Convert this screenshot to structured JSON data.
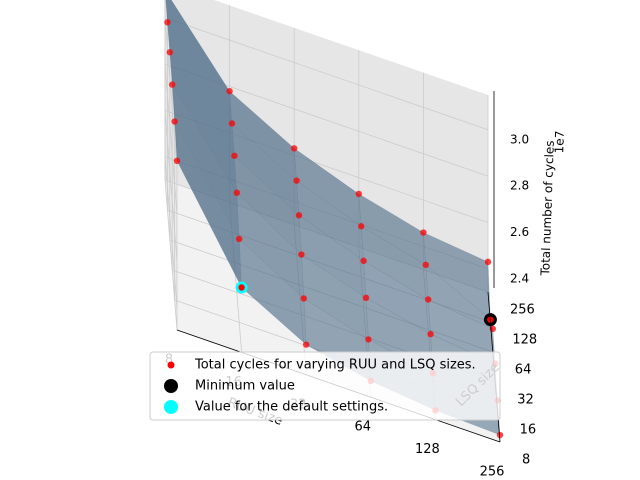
{
  "chart_data": {
    "type": "scatter",
    "subtype": "3d-surface",
    "title": "",
    "xlabel": "RUU size",
    "ylabel": "LSQ size",
    "zlabel": "Total number of cycles",
    "z_offset_label": "1e7",
    "x_ticks": [
      "8",
      "16",
      "32",
      "64",
      "128",
      "256"
    ],
    "y_ticks": [
      "8",
      "16",
      "32",
      "64",
      "128",
      "256"
    ],
    "z_ticks": [
      "2.4",
      "2.6",
      "2.8",
      "3.0"
    ],
    "zlim": [
      2.3,
      3.15
    ],
    "grid": true,
    "legend_position": "lower-center",
    "legend": [
      {
        "label": "Total cycles for varying RUU and LSQ sizes.",
        "marker": "dot",
        "color": "#ff0000"
      },
      {
        "label": "Minimum value",
        "marker": "circle",
        "color": "#000000"
      },
      {
        "label": "Value for the default settings.",
        "marker": "circle",
        "color": "#00ffff"
      }
    ],
    "points": [
      {
        "ruu": 8,
        "lsq": 8,
        "cycles": 3.03
      },
      {
        "ruu": 8,
        "lsq": 16,
        "cycles": 3.07
      },
      {
        "ruu": 8,
        "lsq": 32,
        "cycles": 3.1
      },
      {
        "ruu": 8,
        "lsq": 64,
        "cycles": 3.11
      },
      {
        "ruu": 8,
        "lsq": 128,
        "cycles": 3.11
      },
      {
        "ruu": 8,
        "lsq": 256,
        "cycles": 3.12
      },
      {
        "ruu": 16,
        "lsq": 8,
        "cycles": 2.58
      },
      {
        "ruu": 16,
        "lsq": 16,
        "cycles": 2.66
      },
      {
        "ruu": 16,
        "lsq": 32,
        "cycles": 2.73
      },
      {
        "ruu": 16,
        "lsq": 64,
        "cycles": 2.76
      },
      {
        "ruu": 16,
        "lsq": 128,
        "cycles": 2.77
      },
      {
        "ruu": 16,
        "lsq": 256,
        "cycles": 2.78
      },
      {
        "ruu": 32,
        "lsq": 8,
        "cycles": 2.43
      },
      {
        "ruu": 32,
        "lsq": 16,
        "cycles": 2.5
      },
      {
        "ruu": 32,
        "lsq": 32,
        "cycles": 2.56
      },
      {
        "ruu": 32,
        "lsq": 64,
        "cycles": 2.6
      },
      {
        "ruu": 32,
        "lsq": 128,
        "cycles": 2.62
      },
      {
        "ruu": 32,
        "lsq": 256,
        "cycles": 2.63
      },
      {
        "ruu": 64,
        "lsq": 8,
        "cycles": 2.37
      },
      {
        "ruu": 64,
        "lsq": 16,
        "cycles": 2.42
      },
      {
        "ruu": 64,
        "lsq": 32,
        "cycles": 2.47
      },
      {
        "ruu": 64,
        "lsq": 64,
        "cycles": 2.5
      },
      {
        "ruu": 64,
        "lsq": 128,
        "cycles": 2.52
      },
      {
        "ruu": 64,
        "lsq": 256,
        "cycles": 2.53
      },
      {
        "ruu": 128,
        "lsq": 8,
        "cycles": 2.34
      },
      {
        "ruu": 128,
        "lsq": 16,
        "cycles": 2.37
      },
      {
        "ruu": 128,
        "lsq": 32,
        "cycles": 2.41
      },
      {
        "ruu": 128,
        "lsq": 64,
        "cycles": 2.43
      },
      {
        "ruu": 128,
        "lsq": 128,
        "cycles": 2.45
      },
      {
        "ruu": 128,
        "lsq": 256,
        "cycles": 2.46
      },
      {
        "ruu": 256,
        "lsq": 8,
        "cycles": 2.33
      },
      {
        "ruu": 256,
        "lsq": 16,
        "cycles": 2.35
      },
      {
        "ruu": 256,
        "lsq": 32,
        "cycles": 2.38
      },
      {
        "ruu": 256,
        "lsq": 64,
        "cycles": 2.4
      },
      {
        "ruu": 256,
        "lsq": 128,
        "cycles": 2.31
      },
      {
        "ruu": 256,
        "lsq": 256,
        "cycles": 2.43
      }
    ],
    "minimum": {
      "ruu": 256,
      "lsq": 128,
      "cycles": 2.31
    },
    "default": {
      "ruu": 16,
      "lsq": 8,
      "cycles": 2.58
    },
    "colors": {
      "points": "#ff0000",
      "surface": "#4f6d88",
      "minimum": "#000000",
      "default": "#00ffff",
      "pane": "#f2f2f2",
      "grid": "#cccccc"
    }
  }
}
